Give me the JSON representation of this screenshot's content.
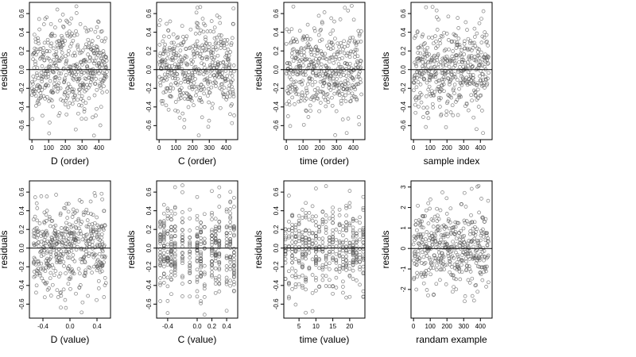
{
  "chart_data": [
    {
      "type": "scatter",
      "xlabel": "D (order)",
      "ylabel": "residuals",
      "xticks": [
        "0",
        "100",
        "200",
        "300",
        "400"
      ],
      "xtick_values": [
        0,
        100,
        200,
        300,
        400
      ],
      "xlim": [
        -15,
        470
      ],
      "yticks": [
        "-0.6",
        "-0.4",
        "-0.2",
        "0.0",
        "0.2",
        "0.4",
        "0.6"
      ],
      "ytick_values": [
        -0.6,
        -0.4,
        -0.2,
        0.0,
        0.2,
        0.4,
        0.6
      ],
      "ylim": [
        -0.75,
        0.72
      ],
      "reference_line": 0,
      "x_pattern": "index",
      "n_points": 450,
      "y_spread": 0.24,
      "seed": 11
    },
    {
      "type": "scatter",
      "xlabel": "C (order)",
      "ylabel": "residuals",
      "xticks": [
        "0",
        "100",
        "200",
        "300",
        "400"
      ],
      "xtick_values": [
        0,
        100,
        200,
        300,
        400
      ],
      "xlim": [
        -15,
        470
      ],
      "yticks": [
        "-0.6",
        "-0.4",
        "-0.2",
        "0.0",
        "0.2",
        "0.4",
        "0.6"
      ],
      "ytick_values": [
        -0.6,
        -0.4,
        -0.2,
        0.0,
        0.2,
        0.4,
        0.6
      ],
      "ylim": [
        -0.75,
        0.72
      ],
      "reference_line": 0,
      "x_pattern": "index",
      "n_points": 450,
      "y_spread": 0.24,
      "seed": 23
    },
    {
      "type": "scatter",
      "xlabel": "time (order)",
      "ylabel": "residuals",
      "xticks": [
        "0",
        "100",
        "200",
        "300",
        "400"
      ],
      "xtick_values": [
        0,
        100,
        200,
        300,
        400
      ],
      "xlim": [
        -15,
        470
      ],
      "yticks": [
        "-0.6",
        "-0.4",
        "-0.2",
        "0.0",
        "0.2",
        "0.4",
        "0.6"
      ],
      "ytick_values": [
        -0.6,
        -0.4,
        -0.2,
        0.0,
        0.2,
        0.4,
        0.6
      ],
      "ylim": [
        -0.75,
        0.72
      ],
      "reference_line": 0,
      "x_pattern": "index",
      "n_points": 450,
      "y_spread": 0.24,
      "seed": 37
    },
    {
      "type": "scatter",
      "xlabel": "sample index",
      "ylabel": "residuals",
      "xticks": [
        "0",
        "100",
        "200",
        "300",
        "400"
      ],
      "xtick_values": [
        0,
        100,
        200,
        300,
        400
      ],
      "xlim": [
        -15,
        470
      ],
      "yticks": [
        "-0.6",
        "-0.4",
        "-0.2",
        "0.0",
        "0.2",
        "0.4",
        "0.6"
      ],
      "ytick_values": [
        -0.6,
        -0.4,
        -0.2,
        0.0,
        0.2,
        0.4,
        0.6
      ],
      "ylim": [
        -0.75,
        0.72
      ],
      "reference_line": 0,
      "x_pattern": "index",
      "n_points": 450,
      "y_spread": 0.24,
      "seed": 41
    },
    {
      "type": "scatter",
      "xlabel": "D (value)",
      "ylabel": "residuals",
      "xticks": [
        "-0.4",
        "0.0",
        "0.4"
      ],
      "xtick_values": [
        -0.4,
        0.0,
        0.4
      ],
      "xlim": [
        -0.6,
        0.6
      ],
      "yticks": [
        "-0.6",
        "-0.4",
        "-0.2",
        "0.0",
        "0.2",
        "0.4",
        "0.6"
      ],
      "ytick_values": [
        -0.6,
        -0.4,
        -0.2,
        0.0,
        0.2,
        0.4,
        0.6
      ],
      "ylim": [
        -0.75,
        0.72
      ],
      "reference_line": 0,
      "x_pattern": "continuous",
      "n_points": 450,
      "y_spread": 0.24,
      "seed": 53
    },
    {
      "type": "scatter",
      "xlabel": "C (value)",
      "ylabel": "residuals",
      "xticks": [
        "-0.4",
        "0.0",
        "0.2",
        "0.4"
      ],
      "xtick_values": [
        -0.4,
        0.0,
        0.2,
        0.4
      ],
      "xlim": [
        -0.55,
        0.55
      ],
      "yticks": [
        "-0.6",
        "-0.4",
        "-0.2",
        "0.0",
        "0.2",
        "0.4",
        "0.6"
      ],
      "ytick_values": [
        -0.6,
        -0.4,
        -0.2,
        0.0,
        0.2,
        0.4,
        0.6
      ],
      "ylim": [
        -0.75,
        0.72
      ],
      "reference_line": 0,
      "x_pattern": "discrete",
      "x_levels": [
        -0.5,
        -0.45,
        -0.4,
        -0.35,
        -0.3,
        -0.2,
        -0.1,
        0.0,
        0.05,
        0.1,
        0.2,
        0.25,
        0.3,
        0.4,
        0.45,
        0.5
      ],
      "n_points": 450,
      "y_spread": 0.24,
      "seed": 67
    },
    {
      "type": "scatter",
      "xlabel": "time (value)",
      "ylabel": "residuals",
      "xticks": [
        "5",
        "10",
        "15",
        "20"
      ],
      "xtick_values": [
        5,
        10,
        15,
        20
      ],
      "xlim": [
        0.5,
        24.5
      ],
      "yticks": [
        "-0.6",
        "-0.4",
        "-0.2",
        "0.0",
        "0.2",
        "0.4",
        "0.6"
      ],
      "ytick_values": [
        -0.6,
        -0.4,
        -0.2,
        0.0,
        0.2,
        0.4,
        0.6
      ],
      "ylim": [
        -0.75,
        0.72
      ],
      "reference_line": 0,
      "x_pattern": "discrete",
      "x_levels": [
        1,
        2,
        3,
        4,
        5,
        6,
        7,
        8,
        9,
        10,
        11,
        12,
        13,
        14,
        15,
        16,
        17,
        18,
        19,
        20,
        21,
        22,
        23,
        24
      ],
      "n_points": 450,
      "y_spread": 0.24,
      "seed": 79
    },
    {
      "type": "scatter",
      "xlabel": "randam example",
      "ylabel": "residuals",
      "xticks": [
        "0",
        "100",
        "200",
        "300",
        "400"
      ],
      "xtick_values": [
        0,
        100,
        200,
        300,
        400
      ],
      "xlim": [
        -15,
        470
      ],
      "yticks": [
        "-2",
        "-1",
        "0",
        "1",
        "2",
        "3"
      ],
      "ytick_values": [
        -2,
        -1,
        0,
        1,
        2,
        3
      ],
      "ylim": [
        -3.4,
        3.3
      ],
      "reference_line": 0,
      "x_pattern": "index",
      "n_points": 450,
      "y_spread": 1.0,
      "seed": 97
    }
  ]
}
